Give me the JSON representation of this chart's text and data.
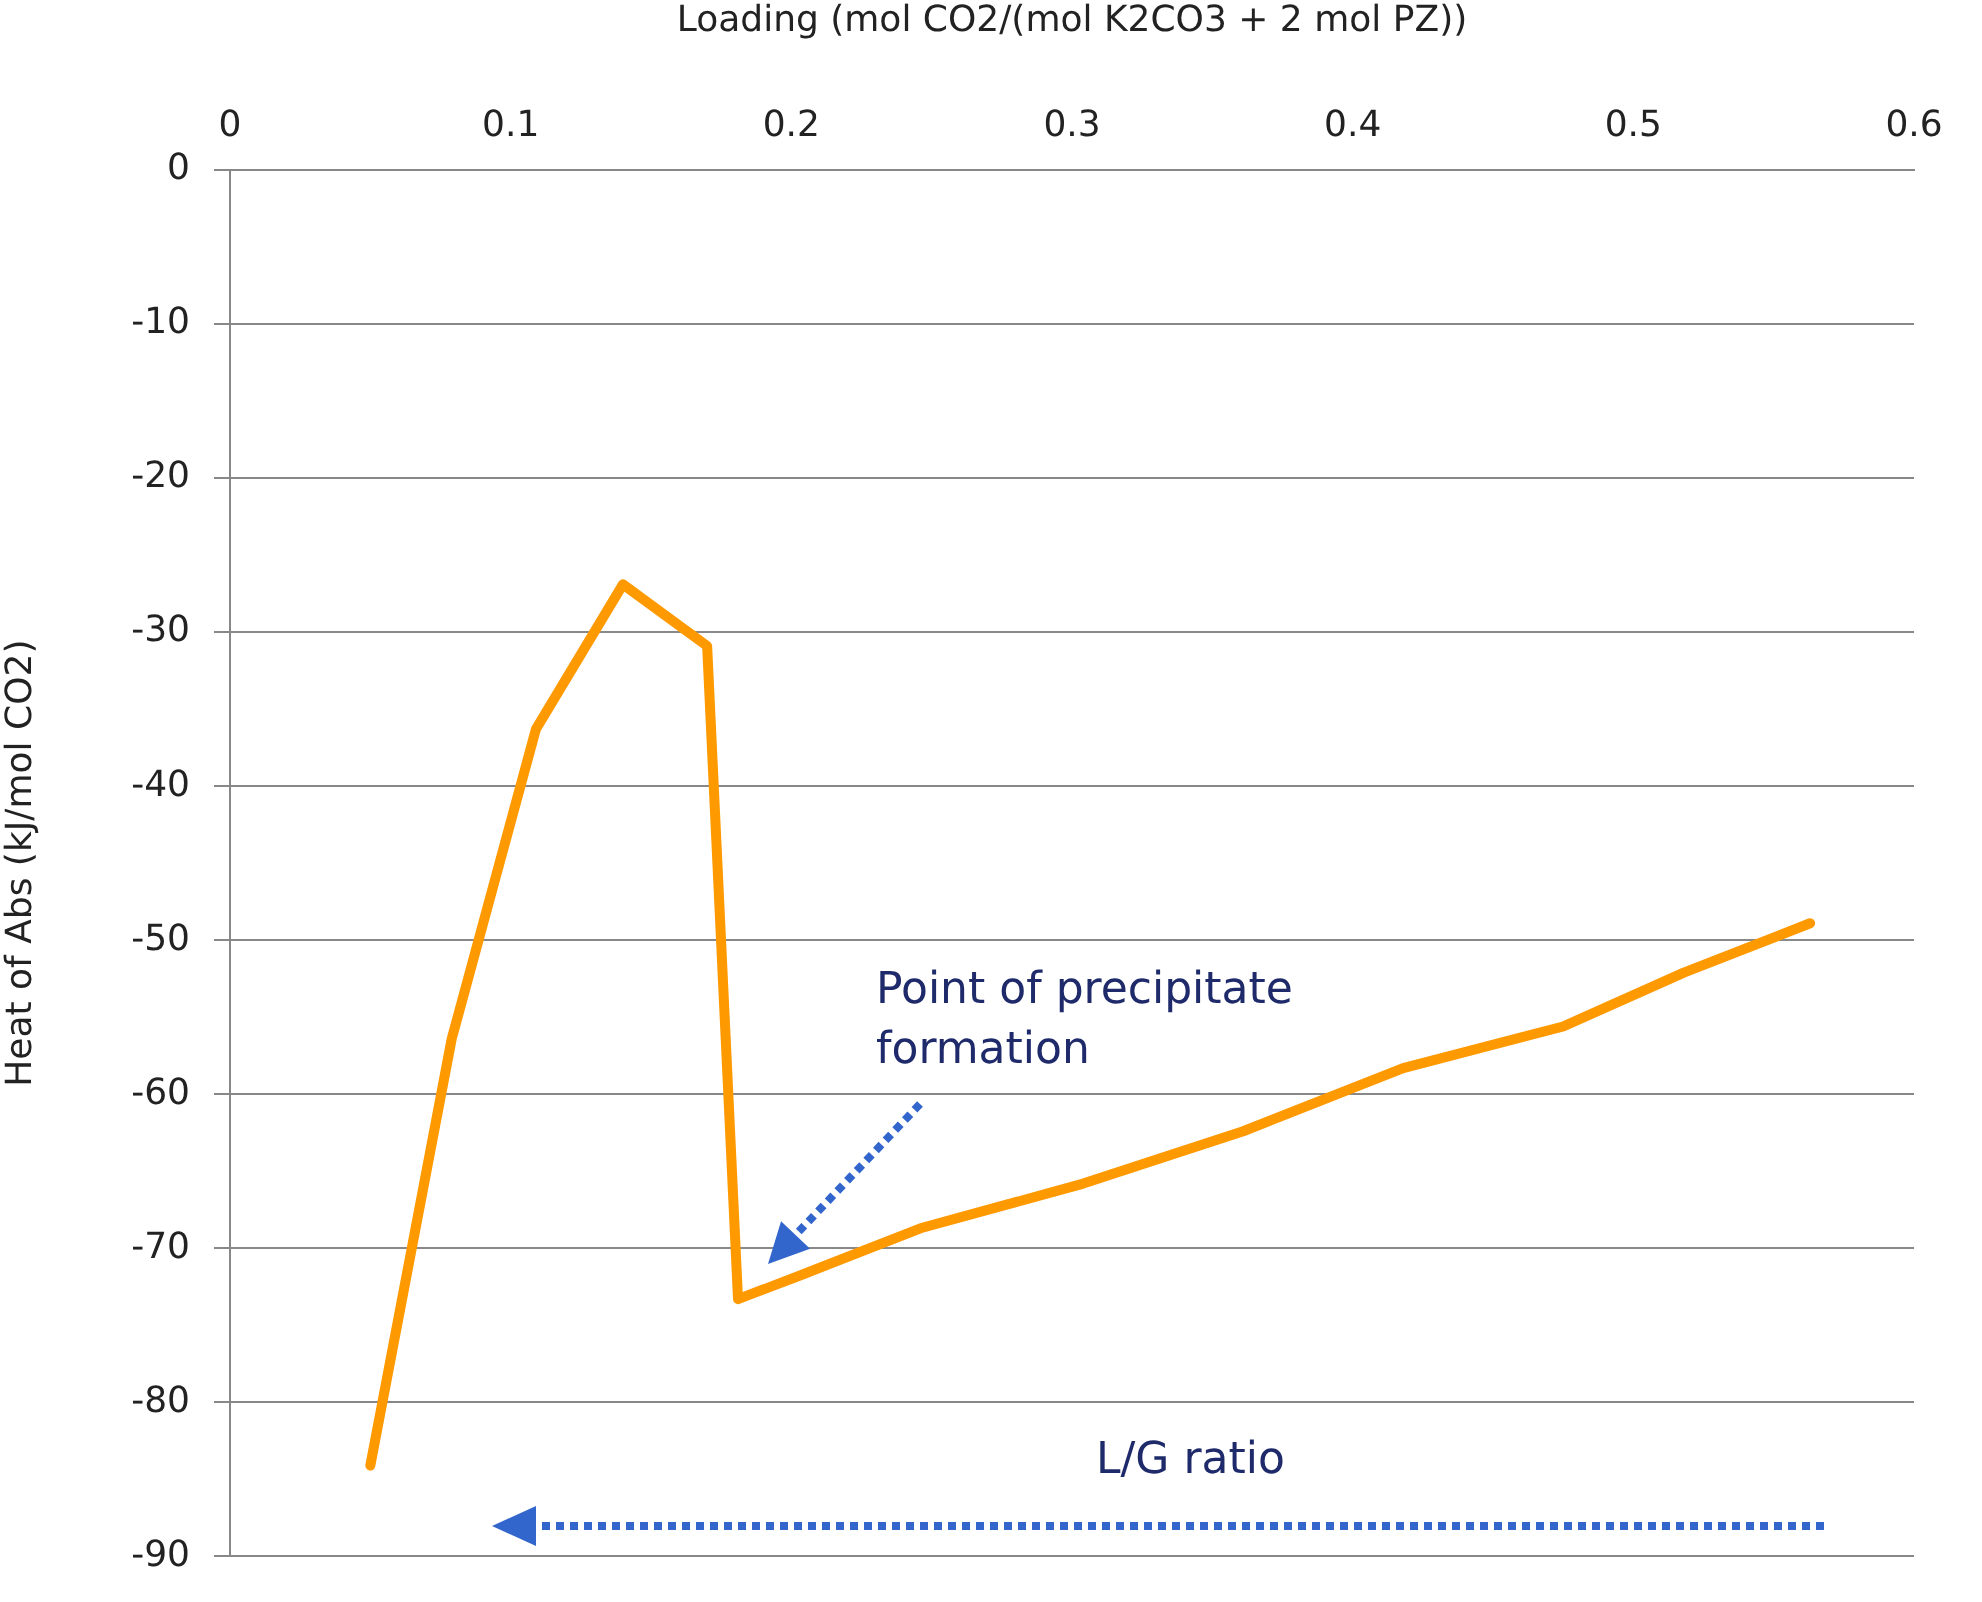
{
  "chart_data": {
    "type": "line",
    "xlabel": "Loading (mol CO2/(mol K2CO3 + 2 mol PZ))",
    "ylabel": "Heat of Abs (kJ/mol CO2)",
    "x": [
      0.05,
      0.079,
      0.109,
      0.14,
      0.17,
      0.181,
      0.204,
      0.246,
      0.304,
      0.361,
      0.418,
      0.475,
      0.518,
      0.563
    ],
    "values": [
      -84.1,
      -56.4,
      -36.3,
      -26.9,
      -30.9,
      -73.3,
      -71.7,
      -68.7,
      -65.8,
      -62.4,
      -58.3,
      -55.6,
      -52.1,
      -48.9
    ],
    "color": "#ff9900",
    "xlim": [
      0,
      0.6
    ],
    "xticks": [
      0,
      0.1,
      0.2,
      0.3,
      0.4,
      0.5,
      0.6
    ],
    "ylim": [
      -90,
      0
    ],
    "yticks": [
      -90,
      -80,
      -70,
      -60,
      -50,
      -40,
      -30,
      -20,
      -10,
      0
    ],
    "grid": "y",
    "legend": false,
    "marker": "none",
    "line_style": "solid",
    "annotations": [
      "Point of precipitate formation",
      "L/G ratio"
    ]
  }
}
